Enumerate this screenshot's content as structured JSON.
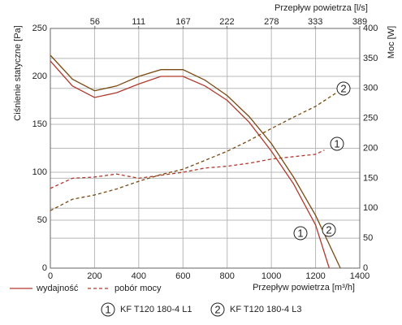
{
  "chart_data": {
    "type": "line",
    "xlabel": "Przepływ powietrza [m³/h]",
    "x2label": "Przepływ powietrza [l/s]",
    "ylabel": "Ciśnienie statyczne [Pa]",
    "y2label": "Moc [W]",
    "xlim": [
      0,
      1400
    ],
    "xticks": [
      0,
      200,
      400,
      600,
      800,
      1000,
      1200,
      1400
    ],
    "x2lim": [
      0,
      389
    ],
    "x2ticks": [
      56,
      111,
      167,
      222,
      278,
      333,
      389
    ],
    "ylim": [
      0,
      250
    ],
    "yticks": [
      0,
      50,
      100,
      150,
      200,
      250
    ],
    "y2lim": [
      0,
      400
    ],
    "y2ticks": [
      0,
      50,
      100,
      150,
      200,
      250,
      300,
      350,
      400
    ],
    "grid": true,
    "line_styles": {
      "pressure": {
        "label": "wydajność",
        "dash": "solid"
      },
      "power": {
        "label": "pobór mocy",
        "dash": "dashed"
      }
    },
    "models": [
      {
        "marker": "1",
        "name": "KF T120 180-4 L1",
        "color": "#b03a2e",
        "pressure": {
          "x": [
            0,
            100,
            200,
            300,
            400,
            500,
            600,
            700,
            800,
            900,
            1000,
            1100,
            1200,
            1262
          ],
          "values": [
            216,
            190,
            178,
            183,
            192,
            200,
            200,
            190,
            175,
            152,
            122,
            88,
            45,
            0
          ]
        },
        "power": {
          "axis": "y2",
          "x": [
            0,
            100,
            200,
            300,
            400,
            500,
            600,
            700,
            800,
            900,
            1000,
            1100,
            1200,
            1240
          ],
          "values": [
            133,
            150,
            152,
            157,
            150,
            155,
            160,
            167,
            170,
            175,
            182,
            186,
            190,
            197
          ]
        }
      },
      {
        "marker": "2",
        "name": "KF T120 180-4 L3",
        "color": "#7a4a12",
        "pressure": {
          "x": [
            0,
            100,
            200,
            300,
            400,
            500,
            600,
            700,
            800,
            900,
            1000,
            1100,
            1200,
            1312
          ],
          "values": [
            222,
            197,
            185,
            190,
            200,
            207,
            207,
            196,
            180,
            158,
            130,
            95,
            55,
            0
          ]
        },
        "power": {
          "axis": "y2",
          "x": [
            0,
            100,
            200,
            300,
            400,
            500,
            600,
            700,
            800,
            900,
            1000,
            1100,
            1200,
            1300
          ],
          "values": [
            96,
            115,
            122,
            132,
            145,
            156,
            165,
            180,
            195,
            213,
            233,
            252,
            270,
            294
          ]
        }
      }
    ]
  }
}
